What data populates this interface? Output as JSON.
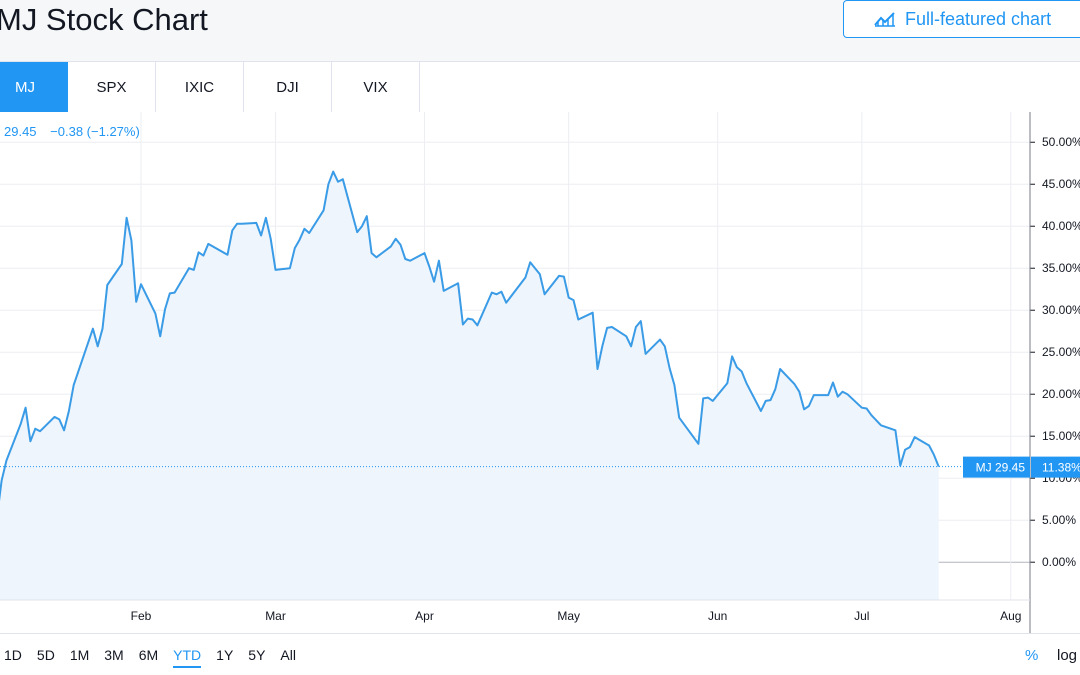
{
  "header": {
    "title": "MJ Stock Chart",
    "full_chart_label": "Full-featured chart"
  },
  "tabs": [
    {
      "label": "MJ",
      "active": true
    },
    {
      "label": "SPX",
      "active": false
    },
    {
      "label": "IXIC",
      "active": false
    },
    {
      "label": "DJI",
      "active": false
    },
    {
      "label": "VIX",
      "active": false
    }
  ],
  "legend": {
    "price": "29.45",
    "change": "−0.38 (−1.27%)"
  },
  "ranges": [
    {
      "label": "1D",
      "active": false
    },
    {
      "label": "5D",
      "active": false
    },
    {
      "label": "1M",
      "active": false
    },
    {
      "label": "3M",
      "active": false
    },
    {
      "label": "6M",
      "active": false
    },
    {
      "label": "YTD",
      "active": true
    },
    {
      "label": "1Y",
      "active": false
    },
    {
      "label": "5Y",
      "active": false
    },
    {
      "label": "All",
      "active": false
    }
  ],
  "footer": {
    "percent_label": "%",
    "log_label": "log"
  },
  "colors": {
    "accent": "#2196f3",
    "line": "#3a9be6",
    "fill": "#eef5fc",
    "grid": "#eceef2",
    "zero_line": "#b2b5be"
  },
  "chart_data": {
    "type": "area",
    "symbol": "MJ",
    "title": "",
    "xlabel": "",
    "ylabel": "",
    "ylim": [
      -4.5,
      53.6
    ],
    "xlim": [
      "2019-01-01",
      "2019-08-05"
    ],
    "y_scale": "linear",
    "y_ticks": [
      "50.00%",
      "45.00%",
      "40.00%",
      "35.00%",
      "30.00%",
      "25.00%",
      "20.00%",
      "15.00%",
      "10.00%",
      "5.00%",
      "0.00%"
    ],
    "y_tick_values": [
      50,
      45,
      40,
      35,
      30,
      25,
      20,
      15,
      10,
      5,
      0
    ],
    "x_ticks": [
      {
        "label": "Feb",
        "date": "2019-02-01"
      },
      {
        "label": "Mar",
        "date": "2019-03-01"
      },
      {
        "label": "Apr",
        "date": "2019-04-01"
      },
      {
        "label": "May",
        "date": "2019-05-01"
      },
      {
        "label": "Jun",
        "date": "2019-06-01"
      },
      {
        "label": "Jul",
        "date": "2019-07-01"
      },
      {
        "label": "Aug",
        "date": "2019-08-01"
      }
    ],
    "grid": true,
    "last_value_label": "MJ 29.45",
    "last_percent_label": "11.38%",
    "last_value": 11.38,
    "series": [
      {
        "points": [
          [
            "2019-01-01",
            5.2
          ],
          [
            "2019-01-02",
            5.2
          ],
          [
            "2019-01-03",
            9.7
          ],
          [
            "2019-01-04",
            12.1
          ],
          [
            "2019-01-07",
            16.5
          ],
          [
            "2019-01-08",
            18.4
          ],
          [
            "2019-01-09",
            14.4
          ],
          [
            "2019-01-10",
            15.9
          ],
          [
            "2019-01-11",
            15.6
          ],
          [
            "2019-01-14",
            17.3
          ],
          [
            "2019-01-15",
            17.0
          ],
          [
            "2019-01-16",
            15.7
          ],
          [
            "2019-01-17",
            18.0
          ],
          [
            "2019-01-18",
            21.1
          ],
          [
            "2019-01-22",
            27.8
          ],
          [
            "2019-01-23",
            25.7
          ],
          [
            "2019-01-24",
            27.8
          ],
          [
            "2019-01-25",
            33.0
          ],
          [
            "2019-01-28",
            35.5
          ],
          [
            "2019-01-29",
            41.0
          ],
          [
            "2019-01-30",
            38.3
          ],
          [
            "2019-01-31",
            31.0
          ],
          [
            "2019-02-01",
            33.1
          ],
          [
            "2019-02-04",
            29.6
          ],
          [
            "2019-02-05",
            26.9
          ],
          [
            "2019-02-06",
            30.1
          ],
          [
            "2019-02-07",
            32.0
          ],
          [
            "2019-02-08",
            32.1
          ],
          [
            "2019-02-11",
            35.0
          ],
          [
            "2019-02-12",
            34.8
          ],
          [
            "2019-02-13",
            36.9
          ],
          [
            "2019-02-14",
            36.5
          ],
          [
            "2019-02-15",
            37.9
          ],
          [
            "2019-02-19",
            36.6
          ],
          [
            "2019-02-20",
            39.5
          ],
          [
            "2019-02-21",
            40.3
          ],
          [
            "2019-02-22",
            40.3
          ],
          [
            "2019-02-25",
            40.4
          ],
          [
            "2019-02-26",
            38.9
          ],
          [
            "2019-02-27",
            41.0
          ],
          [
            "2019-02-28",
            38.5
          ],
          [
            "2019-03-01",
            34.8
          ],
          [
            "2019-03-04",
            35.0
          ],
          [
            "2019-03-05",
            37.4
          ],
          [
            "2019-03-06",
            38.4
          ],
          [
            "2019-03-07",
            39.7
          ],
          [
            "2019-03-08",
            39.2
          ],
          [
            "2019-03-11",
            41.9
          ],
          [
            "2019-03-12",
            45.0
          ],
          [
            "2019-03-13",
            46.5
          ],
          [
            "2019-03-14",
            45.3
          ],
          [
            "2019-03-15",
            45.6
          ],
          [
            "2019-03-18",
            39.3
          ],
          [
            "2019-03-19",
            40.0
          ],
          [
            "2019-03-20",
            41.2
          ],
          [
            "2019-03-21",
            36.8
          ],
          [
            "2019-03-22",
            36.3
          ],
          [
            "2019-03-25",
            37.6
          ],
          [
            "2019-03-26",
            38.5
          ],
          [
            "2019-03-27",
            37.8
          ],
          [
            "2019-03-28",
            36.1
          ],
          [
            "2019-03-29",
            35.9
          ],
          [
            "2019-04-01",
            36.8
          ],
          [
            "2019-04-02",
            35.2
          ],
          [
            "2019-04-03",
            33.4
          ],
          [
            "2019-04-04",
            35.9
          ],
          [
            "2019-04-05",
            32.3
          ],
          [
            "2019-04-08",
            33.2
          ],
          [
            "2019-04-09",
            28.3
          ],
          [
            "2019-04-10",
            29.0
          ],
          [
            "2019-04-11",
            28.9
          ],
          [
            "2019-04-12",
            28.2
          ],
          [
            "2019-04-15",
            32.1
          ],
          [
            "2019-04-16",
            31.9
          ],
          [
            "2019-04-17",
            32.2
          ],
          [
            "2019-04-18",
            30.9
          ],
          [
            "2019-04-22",
            33.9
          ],
          [
            "2019-04-23",
            35.7
          ],
          [
            "2019-04-24",
            35.0
          ],
          [
            "2019-04-25",
            34.3
          ],
          [
            "2019-04-26",
            31.9
          ],
          [
            "2019-04-29",
            34.1
          ],
          [
            "2019-04-30",
            34.0
          ],
          [
            "2019-05-01",
            31.5
          ],
          [
            "2019-05-02",
            31.2
          ],
          [
            "2019-05-03",
            28.9
          ],
          [
            "2019-05-06",
            29.7
          ],
          [
            "2019-05-07",
            23.0
          ],
          [
            "2019-05-08",
            25.7
          ],
          [
            "2019-05-09",
            27.9
          ],
          [
            "2019-05-10",
            28.0
          ],
          [
            "2019-05-13",
            26.9
          ],
          [
            "2019-05-14",
            25.7
          ],
          [
            "2019-05-15",
            28.0
          ],
          [
            "2019-05-16",
            28.7
          ],
          [
            "2019-05-17",
            24.8
          ],
          [
            "2019-05-20",
            26.5
          ],
          [
            "2019-05-21",
            25.7
          ],
          [
            "2019-05-22",
            23.1
          ],
          [
            "2019-05-23",
            21.1
          ],
          [
            "2019-05-24",
            17.2
          ],
          [
            "2019-05-28",
            14.1
          ],
          [
            "2019-05-29",
            19.5
          ],
          [
            "2019-05-30",
            19.6
          ],
          [
            "2019-05-31",
            19.2
          ],
          [
            "2019-06-03",
            21.3
          ],
          [
            "2019-06-04",
            24.5
          ],
          [
            "2019-06-05",
            23.2
          ],
          [
            "2019-06-06",
            22.7
          ],
          [
            "2019-06-07",
            21.3
          ],
          [
            "2019-06-10",
            18.0
          ],
          [
            "2019-06-11",
            19.2
          ],
          [
            "2019-06-12",
            19.3
          ],
          [
            "2019-06-13",
            20.6
          ],
          [
            "2019-06-14",
            23.0
          ],
          [
            "2019-06-17",
            21.2
          ],
          [
            "2019-06-18",
            20.3
          ],
          [
            "2019-06-19",
            18.2
          ],
          [
            "2019-06-20",
            18.6
          ],
          [
            "2019-06-21",
            19.9
          ],
          [
            "2019-06-24",
            19.9
          ],
          [
            "2019-06-25",
            21.4
          ],
          [
            "2019-06-26",
            19.7
          ],
          [
            "2019-06-27",
            20.3
          ],
          [
            "2019-06-28",
            20.0
          ],
          [
            "2019-07-01",
            18.4
          ],
          [
            "2019-07-02",
            18.3
          ],
          [
            "2019-07-03",
            17.5
          ],
          [
            "2019-07-05",
            16.3
          ],
          [
            "2019-07-08",
            15.7
          ],
          [
            "2019-07-09",
            11.5
          ],
          [
            "2019-07-10",
            13.4
          ],
          [
            "2019-07-11",
            13.7
          ],
          [
            "2019-07-12",
            14.9
          ],
          [
            "2019-07-15",
            13.9
          ],
          [
            "2019-07-16",
            12.8
          ],
          [
            "2019-07-17",
            11.38
          ]
        ]
      }
    ]
  }
}
